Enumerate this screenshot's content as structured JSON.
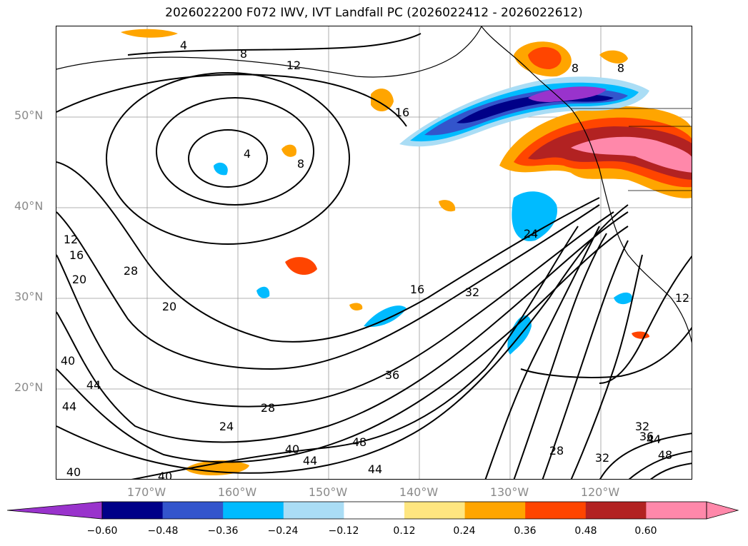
{
  "title": "2026022200 F072 IWV, IVT Landfall PC (2026022412 - 2026022612)",
  "map": {
    "lat_labels": [
      "50°N",
      "40°N",
      "30°N",
      "20°N"
    ],
    "lon_labels": [
      "170°W",
      "160°W",
      "150°W",
      "140°W",
      "130°W",
      "120°W"
    ],
    "contour_labels": [
      "4",
      "8",
      "12",
      "16",
      "4",
      "8",
      "12",
      "16",
      "20",
      "28",
      "20",
      "40",
      "44",
      "44",
      "40",
      "40",
      "24",
      "28",
      "36",
      "32",
      "16",
      "24",
      "40",
      "44",
      "48",
      "44",
      "28",
      "32",
      "32",
      "36",
      "44",
      "48",
      "12",
      "8",
      "8"
    ]
  },
  "colorbar": {
    "colors": [
      "#9933cc",
      "#000088",
      "#3355cc",
      "#00bbff",
      "#aaddf5",
      "#ffffff",
      "#ffe680",
      "#ffa500",
      "#ff4500",
      "#b22222",
      "#ff88aa",
      "#ff88aa"
    ],
    "tick_labels": [
      "−0.60",
      "−0.48",
      "−0.36",
      "−0.24",
      "−0.12",
      "0.12",
      "0.24",
      "0.36",
      "0.48",
      "0.60"
    ]
  }
}
